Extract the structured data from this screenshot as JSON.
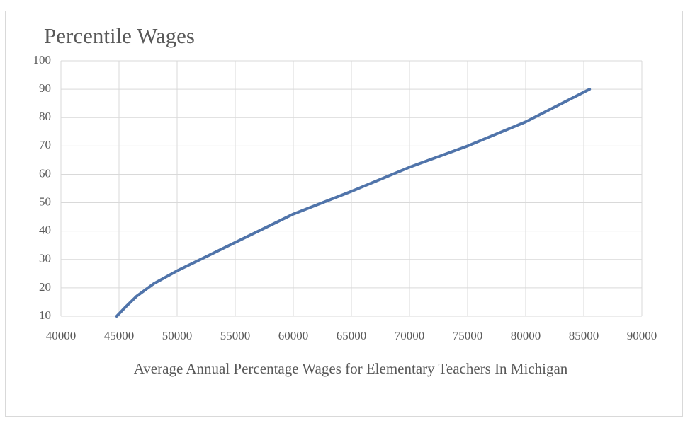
{
  "chart_data": {
    "type": "line",
    "title": "Percentile Wages",
    "x_label": "Average Annual Percentage Wages for Elementary  Teachers In Michigan",
    "series": [
      {
        "color": "#5074aa",
        "x": [
          44800,
          45500,
          46500,
          48000,
          50000,
          52500,
          55000,
          60000,
          65000,
          70000,
          75000,
          80000,
          85500
        ],
        "values": [
          10,
          13,
          17,
          21.5,
          26,
          31,
          36,
          46,
          54,
          62.5,
          70,
          78.5,
          90
        ]
      }
    ],
    "xlim": [
      40000,
      90000
    ],
    "xticks": [
      40000,
      45000,
      50000,
      55000,
      60000,
      65000,
      70000,
      75000,
      80000,
      85000,
      90000
    ],
    "ylim": [
      10,
      100
    ],
    "yticks": [
      10,
      20,
      30,
      40,
      50,
      60,
      70,
      80,
      90,
      100
    ],
    "grid": true
  }
}
